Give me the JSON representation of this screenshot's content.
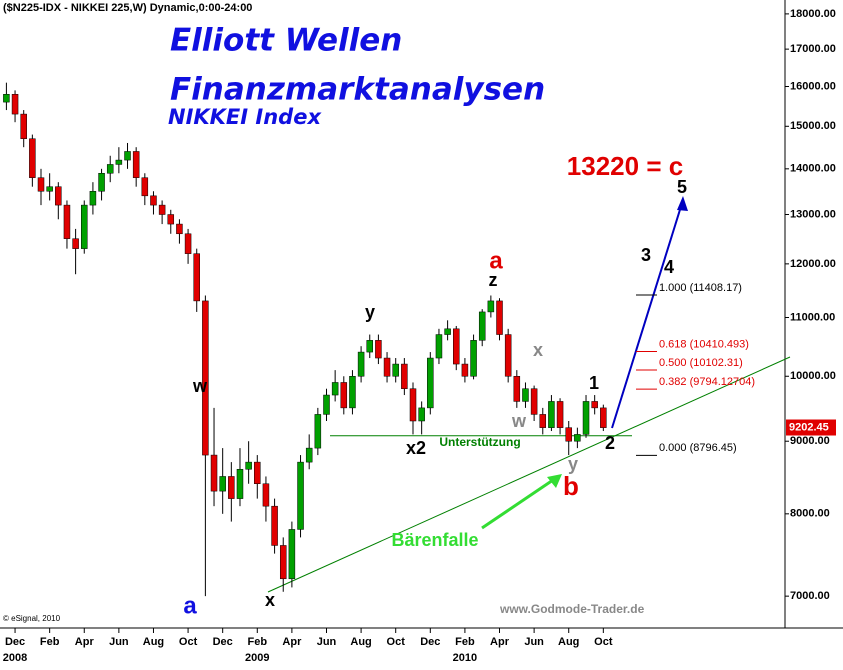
{
  "chart_data": {
    "type": "candlestick",
    "header": "($N225-IDX - NIKKEI 225,W) Dynamic,0:00-24:00",
    "titles": [
      "Elliott Wellen",
      "Finanzmarktanalysen",
      "NIKKEI Index"
    ],
    "copyright": "© eSignal, 2010",
    "source": "www.Godmode-Trader.de",
    "up_color": "#00a000",
    "down_color": "#e00000",
    "log_scale": true,
    "ylim": [
      6680,
      18500
    ],
    "xlim": [
      -0.87,
      44.5
    ],
    "yticks": [
      {
        "value": 7000,
        "label": "7000.00"
      },
      {
        "value": 8000,
        "label": "8000.00"
      },
      {
        "value": 9000,
        "label": "9000.00"
      },
      {
        "value": 10000,
        "label": "10000.00"
      },
      {
        "value": 11000,
        "label": "11000.00"
      },
      {
        "value": 12000,
        "label": "12000.00"
      },
      {
        "value": 13000,
        "label": "13000.00"
      },
      {
        "value": 14000,
        "label": "14000.00"
      },
      {
        "value": 15000,
        "label": "15000.00"
      },
      {
        "value": 16000,
        "label": "16000.00"
      },
      {
        "value": 17000,
        "label": "17000.00"
      },
      {
        "value": 18000,
        "label": "18000.00"
      }
    ],
    "xticks": [
      {
        "value": 0,
        "label": "Dec"
      },
      {
        "value": 2,
        "label": "Feb"
      },
      {
        "value": 4,
        "label": "Apr"
      },
      {
        "value": 6,
        "label": "Jun"
      },
      {
        "value": 8,
        "label": "Aug"
      },
      {
        "value": 10,
        "label": "Oct"
      },
      {
        "value": 12,
        "label": "Dec"
      },
      {
        "value": 14,
        "label": "Feb"
      },
      {
        "value": 16,
        "label": "Apr"
      },
      {
        "value": 18,
        "label": "Jun"
      },
      {
        "value": 20,
        "label": "Aug"
      },
      {
        "value": 22,
        "label": "Oct"
      },
      {
        "value": 24,
        "label": "Dec"
      },
      {
        "value": 26,
        "label": "Feb"
      },
      {
        "value": 28,
        "label": "Apr"
      },
      {
        "value": 30,
        "label": "Jun"
      },
      {
        "value": 32,
        "label": "Aug"
      },
      {
        "value": 34,
        "label": "Oct"
      }
    ],
    "years": [
      {
        "value": 0,
        "label": "2008"
      },
      {
        "value": 14,
        "label": "2009"
      },
      {
        "value": 26,
        "label": "2010"
      }
    ],
    "x": [
      -0.5,
      0,
      0.5,
      1,
      1.5,
      2,
      2.5,
      3,
      3.5,
      4,
      4.5,
      5,
      5.5,
      6,
      6.5,
      7,
      7.5,
      8,
      8.5,
      9,
      9.5,
      10,
      10.5,
      11,
      11.5,
      12,
      12.5,
      13,
      13.5,
      14,
      14.5,
      15,
      15.5,
      16,
      16.5,
      17,
      17.5,
      18,
      18.5,
      19,
      19.5,
      20,
      20.5,
      21,
      21.5,
      22,
      22.5,
      23,
      23.5,
      24,
      24.5,
      25,
      25.5,
      26,
      26.5,
      27,
      27.5,
      28,
      28.5,
      29,
      29.5,
      30,
      30.5,
      31,
      31.5,
      32,
      32.5,
      33,
      33.5,
      34
    ],
    "candles": [
      [
        15600,
        16100,
        15400,
        15800
      ],
      [
        15800,
        15900,
        15100,
        15300
      ],
      [
        15300,
        15400,
        14500,
        14700
      ],
      [
        14700,
        14800,
        13600,
        13800
      ],
      [
        13800,
        14000,
        13200,
        13500
      ],
      [
        13500,
        13900,
        13300,
        13600
      ],
      [
        13600,
        13700,
        12900,
        13200
      ],
      [
        13200,
        13300,
        12300,
        12500
      ],
      [
        12500,
        12700,
        11800,
        12300
      ],
      [
        12300,
        13300,
        12200,
        13200
      ],
      [
        13200,
        13700,
        13000,
        13500
      ],
      [
        13500,
        14000,
        13300,
        13900
      ],
      [
        13900,
        14300,
        13700,
        14100
      ],
      [
        14100,
        14500,
        13900,
        14200
      ],
      [
        14200,
        14600,
        14000,
        14400
      ],
      [
        14400,
        14500,
        13600,
        13800
      ],
      [
        13800,
        13900,
        13200,
        13400
      ],
      [
        13400,
        13500,
        13000,
        13200
      ],
      [
        13200,
        13300,
        12800,
        13000
      ],
      [
        13000,
        13100,
        12600,
        12800
      ],
      [
        12800,
        12900,
        12400,
        12600
      ],
      [
        12600,
        12700,
        12000,
        12200
      ],
      [
        12200,
        12300,
        11100,
        11300
      ],
      [
        11300,
        11400,
        7000,
        8800
      ],
      [
        8800,
        9500,
        8100,
        8300
      ],
      [
        8300,
        8900,
        8000,
        8500
      ],
      [
        8500,
        8700,
        7900,
        8200
      ],
      [
        8200,
        8900,
        8100,
        8600
      ],
      [
        8600,
        9000,
        8400,
        8700
      ],
      [
        8700,
        8800,
        8200,
        8400
      ],
      [
        8400,
        8500,
        7900,
        8100
      ],
      [
        8100,
        8200,
        7500,
        7600
      ],
      [
        7600,
        7700,
        7050,
        7200
      ],
      [
        7200,
        7900,
        7100,
        7800
      ],
      [
        7800,
        8800,
        7700,
        8700
      ],
      [
        8700,
        9100,
        8600,
        8900
      ],
      [
        8900,
        9500,
        8800,
        9400
      ],
      [
        9400,
        9800,
        9300,
        9700
      ],
      [
        9700,
        10100,
        9600,
        9900
      ],
      [
        9900,
        10000,
        9400,
        9500
      ],
      [
        9500,
        10100,
        9400,
        10000
      ],
      [
        10000,
        10500,
        9900,
        10400
      ],
      [
        10400,
        10700,
        10300,
        10600
      ],
      [
        10600,
        10700,
        10200,
        10300
      ],
      [
        10300,
        10400,
        9900,
        10000
      ],
      [
        10000,
        10300,
        9900,
        10200
      ],
      [
        10200,
        10300,
        9700,
        9800
      ],
      [
        9800,
        9900,
        9100,
        9300
      ],
      [
        9300,
        9600,
        9100,
        9500
      ],
      [
        9500,
        10400,
        9400,
        10300
      ],
      [
        10300,
        10800,
        10200,
        10700
      ],
      [
        10700,
        10950,
        10600,
        10800
      ],
      [
        10800,
        10850,
        10100,
        10200
      ],
      [
        10200,
        10300,
        9900,
        10000
      ],
      [
        10000,
        10700,
        9950,
        10600
      ],
      [
        10600,
        11150,
        10500,
        11100
      ],
      [
        11100,
        11400,
        11000,
        11300
      ],
      [
        11300,
        11350,
        10600,
        10700
      ],
      [
        10700,
        10800,
        9900,
        10000
      ],
      [
        10000,
        10100,
        9500,
        9600
      ],
      [
        9600,
        9900,
        9500,
        9800
      ],
      [
        9800,
        9850,
        9300,
        9400
      ],
      [
        9400,
        9500,
        9100,
        9200
      ],
      [
        9200,
        9700,
        9150,
        9600
      ],
      [
        9600,
        9650,
        9100,
        9200
      ],
      [
        9200,
        9300,
        8800,
        9000
      ],
      [
        9000,
        9200,
        8900,
        9100
      ],
      [
        9100,
        9700,
        9050,
        9600
      ],
      [
        9600,
        9700,
        9400,
        9500
      ],
      [
        9500,
        9550,
        9150,
        9200
      ]
    ],
    "last_price": {
      "value": 9202.45,
      "label": "9202.45"
    },
    "support": {
      "value": 9080,
      "label": "Unterstützung"
    },
    "fib_levels": [
      {
        "value": 11408.17,
        "label": "1.000 (11408.17)",
        "color": "#000000"
      },
      {
        "value": 10410.493,
        "label": "0.618 (10410.493)",
        "color": "#e00000"
      },
      {
        "value": 10102.31,
        "label": "0.500 (10102.31)",
        "color": "#e00000"
      },
      {
        "value": 9794.12704,
        "label": "0.382 (9794.12704)",
        "color": "#e00000"
      },
      {
        "value": 8796.45,
        "label": "0.000 (8796.45)",
        "color": "#000000"
      }
    ],
    "annotations": [
      "a",
      "w",
      "x",
      "y",
      "x2",
      "z",
      "a",
      "w",
      "x",
      "y",
      "b",
      "1",
      "2",
      "3",
      "4",
      "5",
      "13220 = c",
      "Bärenfalle"
    ]
  }
}
